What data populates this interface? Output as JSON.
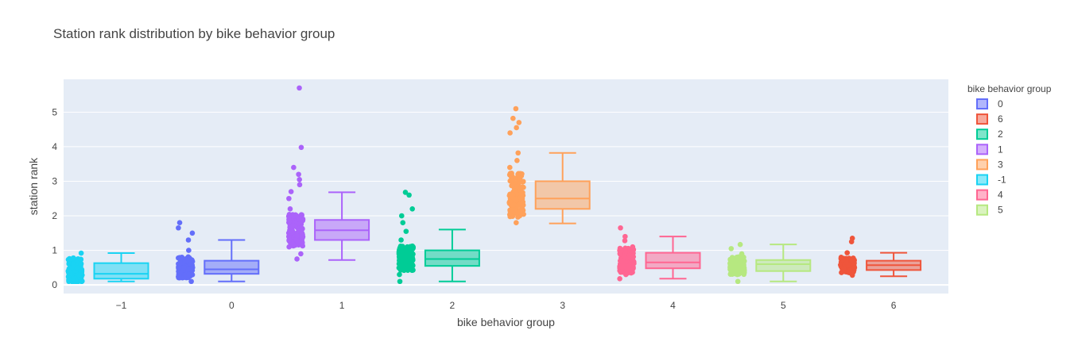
{
  "chart_data": {
    "type": "box",
    "title": "Station rank distribution by bike behavior group",
    "xlabel": "bike behavior group",
    "ylabel": "station rank",
    "categories": [
      "−1",
      "0",
      "1",
      "2",
      "3",
      "4",
      "5",
      "6"
    ],
    "yticks": [
      "0",
      "1",
      "2",
      "3",
      "4",
      "5"
    ],
    "ylim": [
      -0.25,
      5.95
    ],
    "grid": true,
    "legend": {
      "title": "bike behavior group",
      "placement": "right",
      "entries": [
        "0",
        "6",
        "2",
        "1",
        "3",
        "-1",
        "4",
        "5"
      ]
    },
    "series": [
      {
        "name": "-1",
        "x": -1,
        "color": "#19d3f3",
        "box": {
          "min": 0.1,
          "q1": 0.18,
          "median": 0.32,
          "q3": 0.63,
          "max": 0.92
        },
        "points": [
          0.1,
          0.12,
          0.15,
          0.18,
          0.22,
          0.28,
          0.33,
          0.4,
          0.5,
          0.6,
          0.7,
          0.75,
          0.78,
          0.92
        ],
        "point_range": [
          0.1,
          0.92
        ]
      },
      {
        "name": "0",
        "x": 0,
        "color": "#636efa",
        "box": {
          "min": 0.1,
          "q1": 0.32,
          "median": 0.45,
          "q3": 0.7,
          "max": 1.3
        },
        "points": [
          0.1,
          0.3,
          0.5,
          0.7,
          1.0,
          1.3,
          1.5,
          1.65,
          1.8
        ],
        "point_range": [
          0.1,
          1.8
        ]
      },
      {
        "name": "1",
        "x": 1,
        "color": "#ab63fa",
        "box": {
          "min": 0.72,
          "q1": 1.3,
          "median": 1.58,
          "q3": 1.88,
          "max": 2.68
        },
        "points": [
          0.75,
          0.9,
          1.1,
          1.3,
          1.5,
          1.7,
          1.9,
          2.2,
          2.5,
          2.7,
          2.9,
          3.05,
          3.2,
          3.4,
          3.98,
          5.7
        ],
        "point_range": [
          0.75,
          5.7
        ]
      },
      {
        "name": "2",
        "x": 2,
        "color": "#00cc96",
        "box": {
          "min": 0.1,
          "q1": 0.55,
          "median": 0.75,
          "q3": 1.0,
          "max": 1.6
        },
        "points": [
          0.1,
          0.3,
          0.5,
          0.7,
          0.9,
          1.1,
          1.3,
          1.55,
          1.8,
          2.0,
          2.2,
          2.6,
          2.68
        ],
        "point_range": [
          0.1,
          2.68
        ]
      },
      {
        "name": "3",
        "x": 3,
        "color": "#ffa15a",
        "box": {
          "min": 1.78,
          "q1": 2.2,
          "median": 2.5,
          "q3": 3.0,
          "max": 3.82
        },
        "points": [
          1.8,
          2.0,
          2.2,
          2.4,
          2.6,
          2.8,
          3.0,
          3.2,
          3.4,
          3.6,
          3.82,
          4.4,
          4.55,
          4.7,
          4.82,
          5.1
        ],
        "point_range": [
          1.8,
          5.1
        ]
      },
      {
        "name": "4",
        "x": 4,
        "color": "#ff6692",
        "box": {
          "min": 0.18,
          "q1": 0.48,
          "median": 0.65,
          "q3": 0.93,
          "max": 1.4
        },
        "points": [
          0.18,
          0.3,
          0.45,
          0.55,
          0.7,
          0.85,
          1.0,
          1.1,
          1.28,
          1.4,
          1.65
        ],
        "point_range": [
          0.18,
          1.65
        ]
      },
      {
        "name": "5",
        "x": 5,
        "color": "#b6e880",
        "box": {
          "min": 0.1,
          "q1": 0.4,
          "median": 0.6,
          "q3": 0.72,
          "max": 1.17
        },
        "points": [
          0.1,
          0.3,
          0.4,
          0.5,
          0.55,
          0.6,
          0.7,
          0.8,
          0.9,
          1.05,
          1.17
        ],
        "point_range": [
          0.1,
          1.17
        ]
      },
      {
        "name": "6",
        "x": 6,
        "color": "#ef553b",
        "box": {
          "min": 0.25,
          "q1": 0.43,
          "median": 0.57,
          "q3": 0.7,
          "max": 0.93
        },
        "points": [
          0.28,
          0.35,
          0.42,
          0.5,
          0.57,
          0.65,
          0.72,
          0.8,
          0.93,
          1.25,
          1.35
        ],
        "point_range": [
          0.28,
          1.35
        ]
      }
    ]
  }
}
